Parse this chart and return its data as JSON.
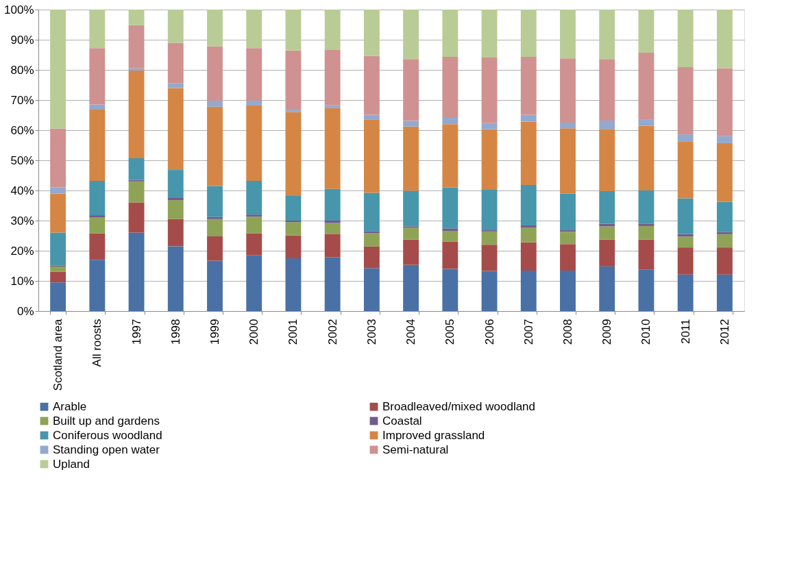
{
  "chart_data": {
    "type": "bar",
    "stacked": true,
    "legend": "bottom",
    "grid": "y",
    "categories": [
      "Scotland area",
      "All roosts",
      "1997",
      "1998",
      "1999",
      "2000",
      "2001",
      "2002",
      "2003",
      "2004",
      "2005",
      "2006",
      "2007",
      "2008",
      "2009",
      "2010",
      "2011",
      "2012"
    ],
    "ylim": [
      0,
      100
    ],
    "yticks": [
      {
        "value": 0,
        "label": "0%"
      },
      {
        "value": 10,
        "label": "10%"
      },
      {
        "value": 20,
        "label": "20%"
      },
      {
        "value": 30,
        "label": "30%"
      },
      {
        "value": 40,
        "label": "40%"
      },
      {
        "value": 50,
        "label": "50%"
      },
      {
        "value": 60,
        "label": "60%"
      },
      {
        "value": 70,
        "label": "70%"
      },
      {
        "value": 80,
        "label": "80%"
      },
      {
        "value": 90,
        "label": "90%"
      },
      {
        "value": 100,
        "label": "100%"
      }
    ],
    "series": [
      {
        "name": "Arable",
        "color": "#4a71a5",
        "values": [
          9.5,
          17,
          26,
          21.5,
          16.7,
          18.5,
          17.5,
          17.8,
          14.2,
          15.3,
          14,
          13.3,
          13.4,
          13.4,
          14.8,
          13.8,
          12.1,
          12.1
        ]
      },
      {
        "name": "Broadleaved/mixed woodland",
        "color": "#a54c4a",
        "values": [
          3.5,
          8.8,
          10,
          9,
          8.1,
          7.3,
          7.6,
          7.8,
          7.2,
          8.4,
          9,
          8.7,
          9.4,
          8.8,
          8.9,
          9.9,
          9,
          9
        ]
      },
      {
        "name": "Built up and gardens",
        "color": "#8fa356",
        "values": [
          1.8,
          5.2,
          7,
          6.3,
          5.7,
          5.5,
          4.4,
          3.6,
          4.4,
          3.9,
          3.6,
          4.4,
          4.8,
          4.1,
          4.4,
          4.5,
          3.6,
          4.4
        ]
      },
      {
        "name": "Coastal",
        "color": "#725a8f",
        "values": [
          0.3,
          0.8,
          0.5,
          0.7,
          0.7,
          0.7,
          0.5,
          0.8,
          0.7,
          0.5,
          0.8,
          0.4,
          0.8,
          0.5,
          0.8,
          0.8,
          0.8,
          0.7
        ]
      },
      {
        "name": "Coniferous woodland",
        "color": "#4796ab",
        "values": [
          10.9,
          11.4,
          7.2,
          9.3,
          10.3,
          11.2,
          8.2,
          10.5,
          12.7,
          11.8,
          13.6,
          13.4,
          13.4,
          12.1,
          10.9,
          11,
          11.9,
          10
        ]
      },
      {
        "name": "Improved grassland",
        "color": "#d58645",
        "values": [
          13,
          23.6,
          29.1,
          27.2,
          26.3,
          25,
          27.8,
          26.8,
          24.4,
          21.3,
          21,
          20.1,
          21,
          21.7,
          20.6,
          21.5,
          18.9,
          19.5
        ]
      },
      {
        "name": "Standing open water",
        "color": "#93a9cf",
        "values": [
          2,
          1.7,
          0.7,
          1.5,
          2,
          1.6,
          0.8,
          1,
          1.5,
          1.9,
          2.1,
          2.1,
          2.3,
          1.9,
          2.8,
          2.1,
          2.3,
          2.3
        ]
      },
      {
        "name": "Semi-natural",
        "color": "#cf9290",
        "values": [
          19.5,
          18.7,
          14.3,
          13.5,
          18,
          17.4,
          19.6,
          18.3,
          19.5,
          20.5,
          20.2,
          21.7,
          19.2,
          21.3,
          20.4,
          22.1,
          22.3,
          22.5
        ]
      },
      {
        "name": "Upland",
        "color": "#b9cc96",
        "values": [
          39.5,
          12.8,
          5.2,
          11,
          12.2,
          12.8,
          13.6,
          13.4,
          15.4,
          16.4,
          15.7,
          15.9,
          15.7,
          16.2,
          16.4,
          14.3,
          19.1,
          19.5
        ]
      }
    ]
  }
}
